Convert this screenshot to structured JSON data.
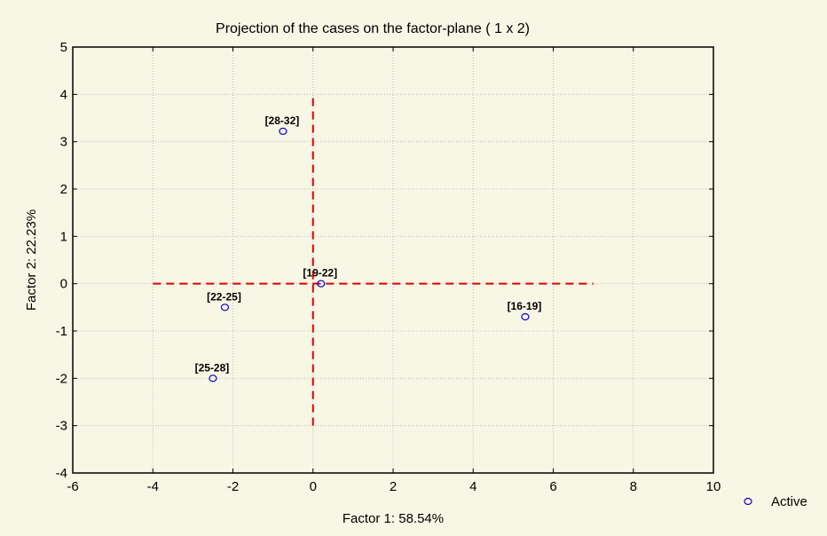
{
  "chart_data": {
    "type": "scatter",
    "title": "Projection of the cases on the factor-plane (  1 x   2)",
    "xlabel": "Factor 1: 58.54%",
    "ylabel": "Factor 2: 22.23%",
    "xlim": [
      -6,
      10
    ],
    "ylim": [
      -4,
      5
    ],
    "xticks": [
      -6,
      -4,
      -2,
      0,
      2,
      4,
      6,
      8,
      10
    ],
    "yticks": [
      -4,
      -3,
      -2,
      -1,
      0,
      1,
      2,
      3,
      4,
      5
    ],
    "grid": true,
    "legend_position": "right",
    "series": [
      {
        "name": "Active",
        "color": "#0000cc",
        "points": [
          {
            "label": "[28-32]",
            "x": -0.75,
            "y": 3.22
          },
          {
            "label": "[19-22]",
            "x": 0.2,
            "y": 0.0
          },
          {
            "label": "[22-25]",
            "x": -2.2,
            "y": -0.5
          },
          {
            "label": "[16-19]",
            "x": 5.3,
            "y": -0.7
          },
          {
            "label": "[25-28]",
            "x": -2.5,
            "y": -2.0
          }
        ]
      }
    ],
    "reference_lines": {
      "color": "#e00000",
      "horizontal": {
        "y": 0,
        "x_from": -4,
        "x_to": 7
      },
      "vertical": {
        "x": 0,
        "y_from": -3,
        "y_to": 4
      }
    }
  }
}
